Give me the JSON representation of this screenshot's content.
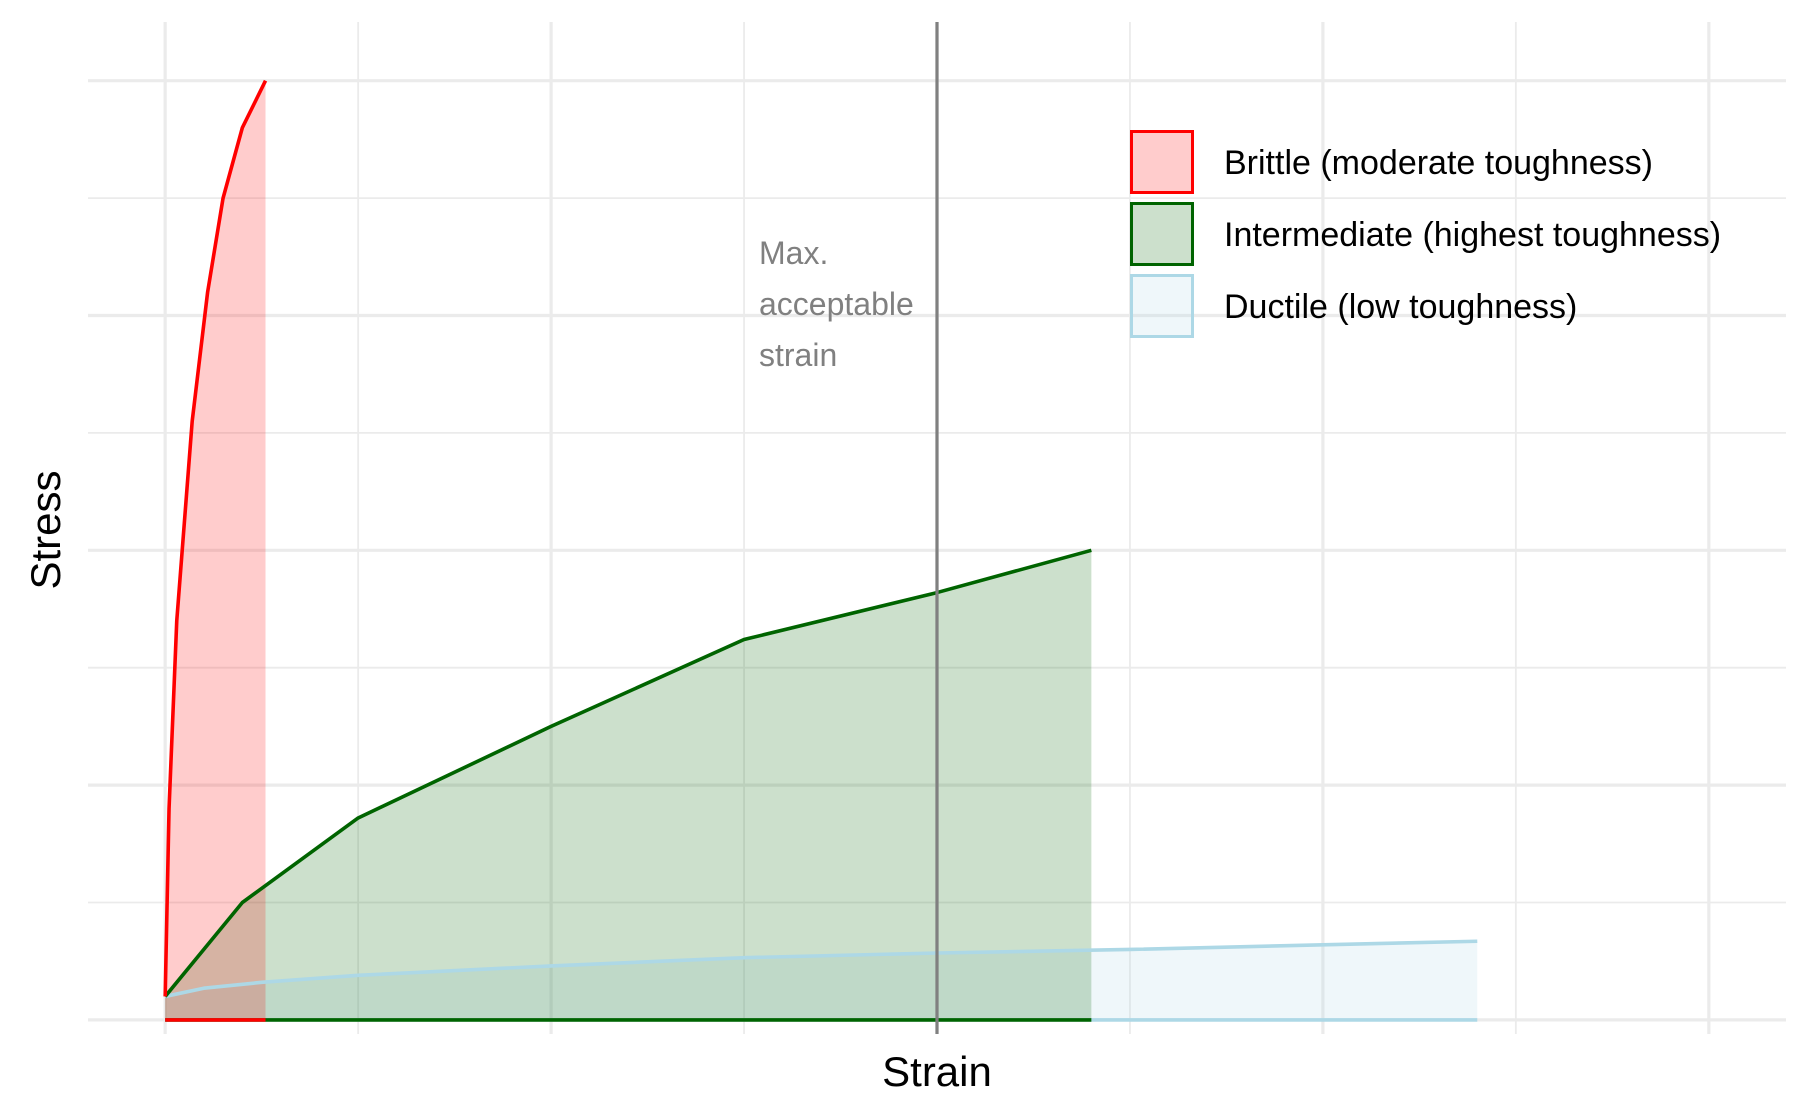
{
  "chart_data": {
    "type": "area",
    "title": "",
    "xlabel": "Strain",
    "ylabel": "Stress",
    "xlim": [
      -0.4,
      8.4
    ],
    "ylim": [
      -0.12,
      8.5
    ],
    "grid": true,
    "legend_position": "top-right",
    "series": [
      {
        "name": "Brittle (moderate toughness)",
        "line_color": "#ff0000",
        "fill_color": "#ff0000",
        "fill_opacity": 0.2,
        "x": [
          0,
          0.02,
          0.06,
          0.14,
          0.22,
          0.3,
          0.4,
          0.52
        ],
        "y": [
          0.2,
          1.8,
          3.4,
          5.1,
          6.2,
          7.0,
          7.6,
          8.0
        ]
      },
      {
        "name": "Intermediate (highest toughness)",
        "line_color": "#006400",
        "fill_color": "#006400",
        "fill_opacity": 0.2,
        "x": [
          0,
          0.4,
          1.0,
          2.0,
          3.0,
          4.0,
          4.8
        ],
        "y": [
          0.2,
          1.0,
          1.72,
          2.5,
          3.24,
          3.64,
          4.0
        ]
      },
      {
        "name": "Ductile (low toughness)",
        "line_color": "#add8e6",
        "fill_color": "#add8e6",
        "fill_opacity": 0.2,
        "x": [
          0,
          0.2,
          0.5,
          1.0,
          2.0,
          3.0,
          4.0,
          5.0,
          6.0,
          6.8
        ],
        "y": [
          0.2,
          0.27,
          0.32,
          0.38,
          0.46,
          0.53,
          0.57,
          0.6,
          0.64,
          0.67
        ]
      }
    ],
    "annotations": [
      {
        "type": "vline",
        "x": 4.0,
        "color": "#808080",
        "label_lines": [
          "Max.",
          "acceptable",
          "strain"
        ]
      }
    ],
    "colors": {
      "grid": "#ebebeb",
      "annotation": "#808080"
    }
  }
}
